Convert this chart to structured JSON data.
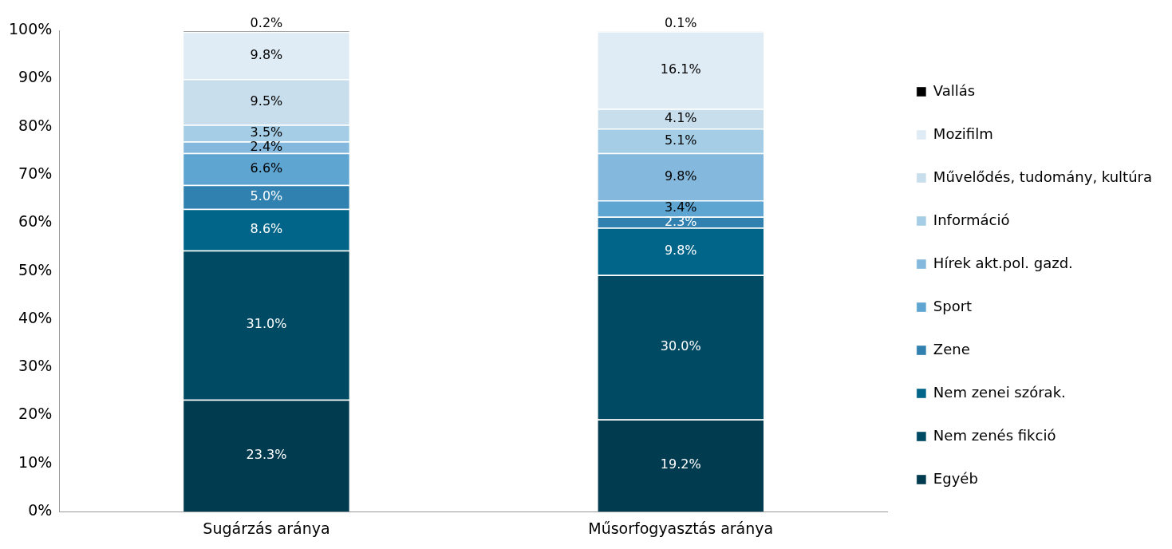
{
  "chart_data": {
    "type": "bar",
    "stacked": true,
    "categories": [
      "Sugárzás aránya",
      "Műsorfogyasztás aránya"
    ],
    "ylim": [
      0,
      100
    ],
    "yticks": [
      {
        "value": 0,
        "label": "0%"
      },
      {
        "value": 10,
        "label": "10%"
      },
      {
        "value": 20,
        "label": "20%"
      },
      {
        "value": 30,
        "label": "30%"
      },
      {
        "value": 40,
        "label": "40%"
      },
      {
        "value": 50,
        "label": "50%"
      },
      {
        "value": 60,
        "label": "60%"
      },
      {
        "value": 70,
        "label": "70%"
      },
      {
        "value": 80,
        "label": "80%"
      },
      {
        "value": 90,
        "label": "90%"
      },
      {
        "value": 100,
        "label": "100%"
      }
    ],
    "grid": false,
    "legend": "right",
    "series": [
      {
        "name": "Egyéb",
        "color": "#003b4f",
        "values": [
          23.3,
          19.2
        ],
        "value_labels": [
          "23.3%",
          "19.2%"
        ]
      },
      {
        "name": "Nem zenés fikció",
        "color": "#004a63",
        "values": [
          31.0,
          30.0
        ],
        "value_labels": [
          "31.0%",
          "30.0%"
        ]
      },
      {
        "name": "Nem zenei szórak.",
        "color": "#006588",
        "values": [
          8.6,
          9.8
        ],
        "value_labels": [
          "8.6%",
          "9.8%"
        ]
      },
      {
        "name": "Zene",
        "color": "#3080b0",
        "values": [
          5.0,
          2.3
        ],
        "value_labels": [
          "5.0%",
          "2.3%"
        ]
      },
      {
        "name": "Sport",
        "color": "#5ea5d2",
        "values": [
          6.6,
          3.4
        ],
        "value_labels": [
          "6.6%",
          "3.4%"
        ]
      },
      {
        "name": "Hírek akt.pol. gazd.",
        "color": "#84b8dc",
        "values": [
          2.4,
          9.8
        ],
        "value_labels": [
          "2.4%",
          "9.8%"
        ]
      },
      {
        "name": "Információ",
        "color": "#a5cde5",
        "values": [
          3.5,
          5.1
        ],
        "value_labels": [
          "3.5%",
          "5.1%"
        ]
      },
      {
        "name": "Művelődés, tudomány, kultúra",
        "color": "#c9deec",
        "values": [
          9.5,
          4.1
        ],
        "value_labels": [
          "9.5%",
          "4.1%"
        ]
      },
      {
        "name": "Mozifilm",
        "color": "#e0ecf5",
        "values": [
          9.8,
          16.1
        ],
        "value_labels": [
          "9.8%",
          "16.1%"
        ]
      },
      {
        "name": "Vallás",
        "color": "#000000",
        "values": [
          0.2,
          0.1
        ],
        "value_labels": [
          "0.2%",
          "0.1%"
        ]
      }
    ]
  }
}
